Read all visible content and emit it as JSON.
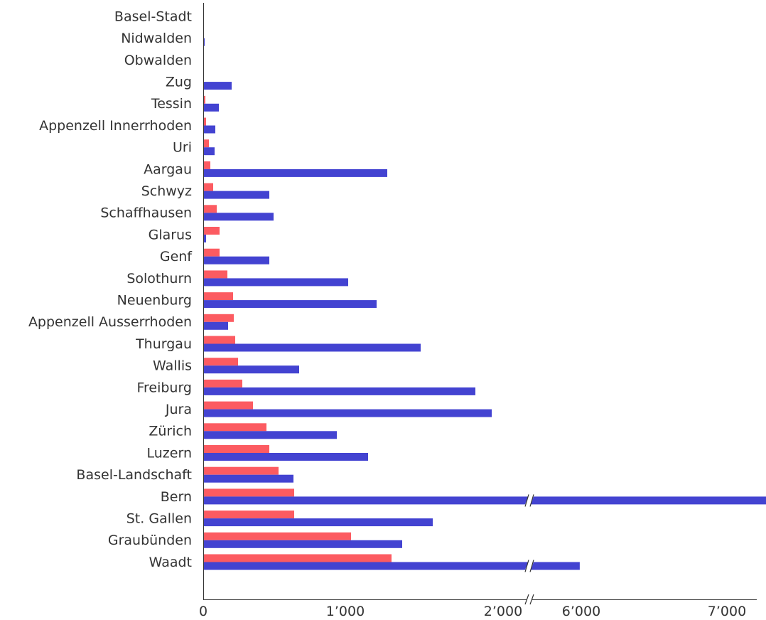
{
  "chart_data": {
    "type": "bar",
    "orientation": "horizontal",
    "categories": [
      "Basel-Stadt",
      "Nidwalden",
      "Obwalden",
      "Zug",
      "Tessin",
      "Appenzell Innerrhoden",
      "Uri",
      "Aargau",
      "Schwyz",
      "Schaffhausen",
      "Glarus",
      "Genf",
      "Solothurn",
      "Neuenburg",
      "Appenzell Ausserrhoden",
      "Thurgau",
      "Wallis",
      "Freiburg",
      "Jura",
      "Zürich",
      "Luzern",
      "Basel-Landschaft",
      "Bern",
      "St. Gallen",
      "Graubünden",
      "Waadt"
    ],
    "series": [
      {
        "color": "#fc5b61",
        "values": [
          0,
          0,
          0,
          0,
          15,
          20,
          40,
          50,
          70,
          95,
          115,
          115,
          170,
          210,
          215,
          225,
          245,
          275,
          350,
          445,
          465,
          530,
          640,
          640,
          1040,
          1325
        ]
      },
      {
        "color": "#4343d1",
        "values": [
          0,
          10,
          0,
          200,
          110,
          85,
          80,
          1295,
          465,
          495,
          20,
          465,
          1020,
          1220,
          175,
          1530,
          675,
          1915,
          2030,
          940,
          1160,
          635,
          7030,
          1615,
          1400,
          5940
        ]
      }
    ],
    "x_ticks": [
      "0",
      "1’000",
      "2’000",
      "6’000",
      "7’000"
    ],
    "x_axis": {
      "segments": [
        [
          0,
          2250
        ],
        [
          5700,
          7050
        ]
      ],
      "break": true
    },
    "title": "",
    "xlabel": "",
    "ylabel": "",
    "grid": false,
    "legend": "none"
  }
}
